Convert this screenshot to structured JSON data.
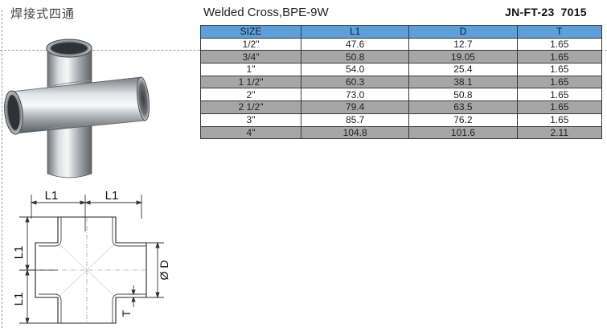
{
  "header": {
    "chinese_title": "焊接式四通",
    "product_title": "Welded Cross,BPE-9W",
    "product_code": "JN-FT-23",
    "product_number": "7015"
  },
  "table": {
    "columns": [
      "SIZE",
      "L1",
      "D",
      "T"
    ],
    "rows": [
      [
        "1/2\"",
        "47.6",
        "12.7",
        "1.65"
      ],
      [
        "3/4\"",
        "50.8",
        "19.05",
        "1.65"
      ],
      [
        "1\"",
        "54.0",
        "25.4",
        "1.65"
      ],
      [
        "1 1/2\"",
        "60.3",
        "38.1",
        "1.65"
      ],
      [
        "2\"",
        "73.0",
        "50.8",
        "1.65"
      ],
      [
        "2 1/2\"",
        "79.4",
        "63.5",
        "1.65"
      ],
      [
        "3\"",
        "85.7",
        "76.2",
        "1.65"
      ],
      [
        "4\"",
        "104.8",
        "101.6",
        "2.11"
      ]
    ],
    "header_color": "#5f9fd9",
    "alt_row_color": "#a6a6a6"
  },
  "drawing": {
    "label_l1": "L1",
    "label_d": "Ø D",
    "label_t": "T"
  }
}
